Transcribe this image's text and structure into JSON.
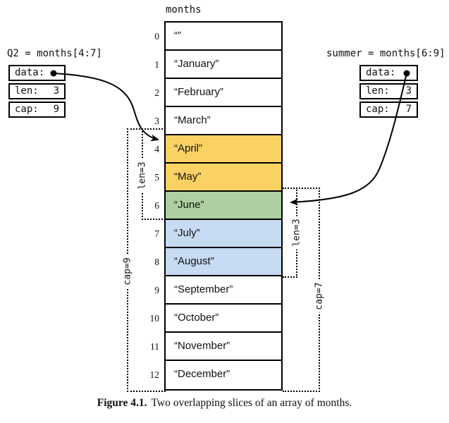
{
  "figure": {
    "array_title": "months",
    "caption_label": "Figure 4.1.",
    "caption_text": "Two overlapping slices of an array of months."
  },
  "colors": {
    "slice_q2": "#fad264",
    "slice_overlap": "#afcfa1",
    "slice_summer": "#c6daf2",
    "cell_default": "#ffffff"
  },
  "array": {
    "cells": [
      {
        "index": "0",
        "value": "“”",
        "fill": "cell_default"
      },
      {
        "index": "1",
        "value": "“January”",
        "fill": "cell_default"
      },
      {
        "index": "2",
        "value": "“February”",
        "fill": "cell_default"
      },
      {
        "index": "3",
        "value": "“March”",
        "fill": "cell_default"
      },
      {
        "index": "4",
        "value": "“April”",
        "fill": "slice_q2"
      },
      {
        "index": "5",
        "value": "“May”",
        "fill": "slice_q2"
      },
      {
        "index": "6",
        "value": "“June”",
        "fill": "slice_overlap"
      },
      {
        "index": "7",
        "value": "“July”",
        "fill": "slice_summer"
      },
      {
        "index": "8",
        "value": "“August”",
        "fill": "slice_summer"
      },
      {
        "index": "9",
        "value": "“September”",
        "fill": "cell_default"
      },
      {
        "index": "10",
        "value": "“October”",
        "fill": "cell_default"
      },
      {
        "index": "11",
        "value": "“November”",
        "fill": "cell_default"
      },
      {
        "index": "12",
        "value": "“December”",
        "fill": "cell_default"
      }
    ]
  },
  "q2": {
    "label": "Q2 = months[4:7]",
    "fields": [
      {
        "name": "data:",
        "value": ""
      },
      {
        "name": "len:",
        "value": "3"
      },
      {
        "name": "cap:",
        "value": "9"
      }
    ],
    "len_bracket": "len=3",
    "cap_bracket": "cap=9"
  },
  "summer": {
    "label": "summer = months[6:9]",
    "fields": [
      {
        "name": "data:",
        "value": ""
      },
      {
        "name": "len:",
        "value": "3"
      },
      {
        "name": "cap:",
        "value": "7"
      }
    ],
    "len_bracket": "len=3",
    "cap_bracket": "cap=7"
  }
}
